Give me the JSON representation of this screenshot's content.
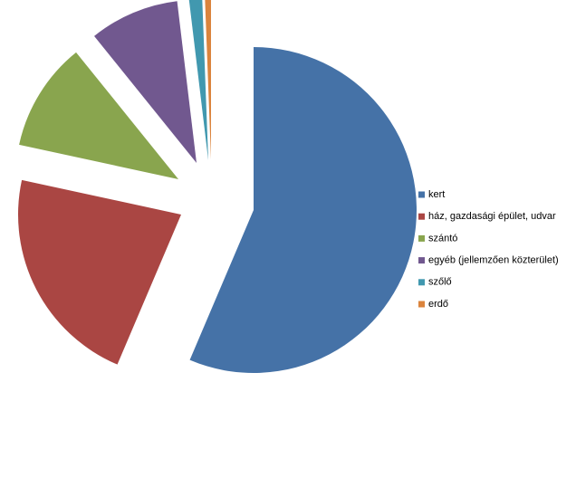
{
  "chart_data": {
    "type": "pie",
    "categories": [
      "kert",
      "ház, gazdasági  épület, udvar",
      "szántó",
      "egyéb (jellemzően közterület)",
      "szőlő",
      "erdő"
    ],
    "values": [
      56.4,
      22.0,
      10.8,
      8.9,
      1.3,
      0.6
    ],
    "colors": [
      "#4572a7",
      "#aa4643",
      "#89a54e",
      "#71588f",
      "#4198af",
      "#db843d"
    ],
    "legend": "right"
  }
}
